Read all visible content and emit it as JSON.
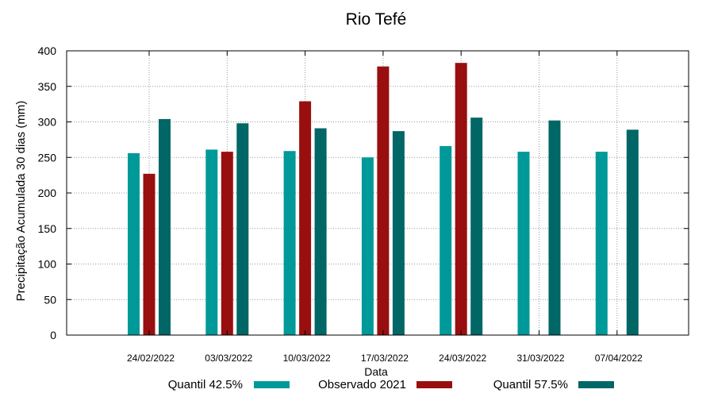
{
  "chart_data": {
    "type": "bar",
    "title": "Rio Tefé",
    "xlabel": "Data",
    "ylabel": "Precipitação Acumulada 30 dias (mm)",
    "ylim": [
      0,
      400
    ],
    "yticks": [
      0,
      50,
      100,
      150,
      200,
      250,
      300,
      350,
      400
    ],
    "grid": true,
    "legend_position": "bottom",
    "categories": [
      "24/02/2022",
      "03/03/2022",
      "10/03/2022",
      "17/03/2022",
      "24/03/2022",
      "31/03/2022",
      "07/04/2022"
    ],
    "series": [
      {
        "name": "Quantil 42.5%",
        "color": "#009999",
        "values": [
          256,
          261,
          259,
          250,
          266,
          258,
          258
        ]
      },
      {
        "name": "Observado 2021",
        "color": "#990f0f",
        "values": [
          227,
          258,
          329,
          378,
          383,
          null,
          null
        ]
      },
      {
        "name": "Quantil 57.5%",
        "color": "#006666",
        "values": [
          304,
          298,
          291,
          287,
          306,
          302,
          289
        ]
      }
    ]
  }
}
